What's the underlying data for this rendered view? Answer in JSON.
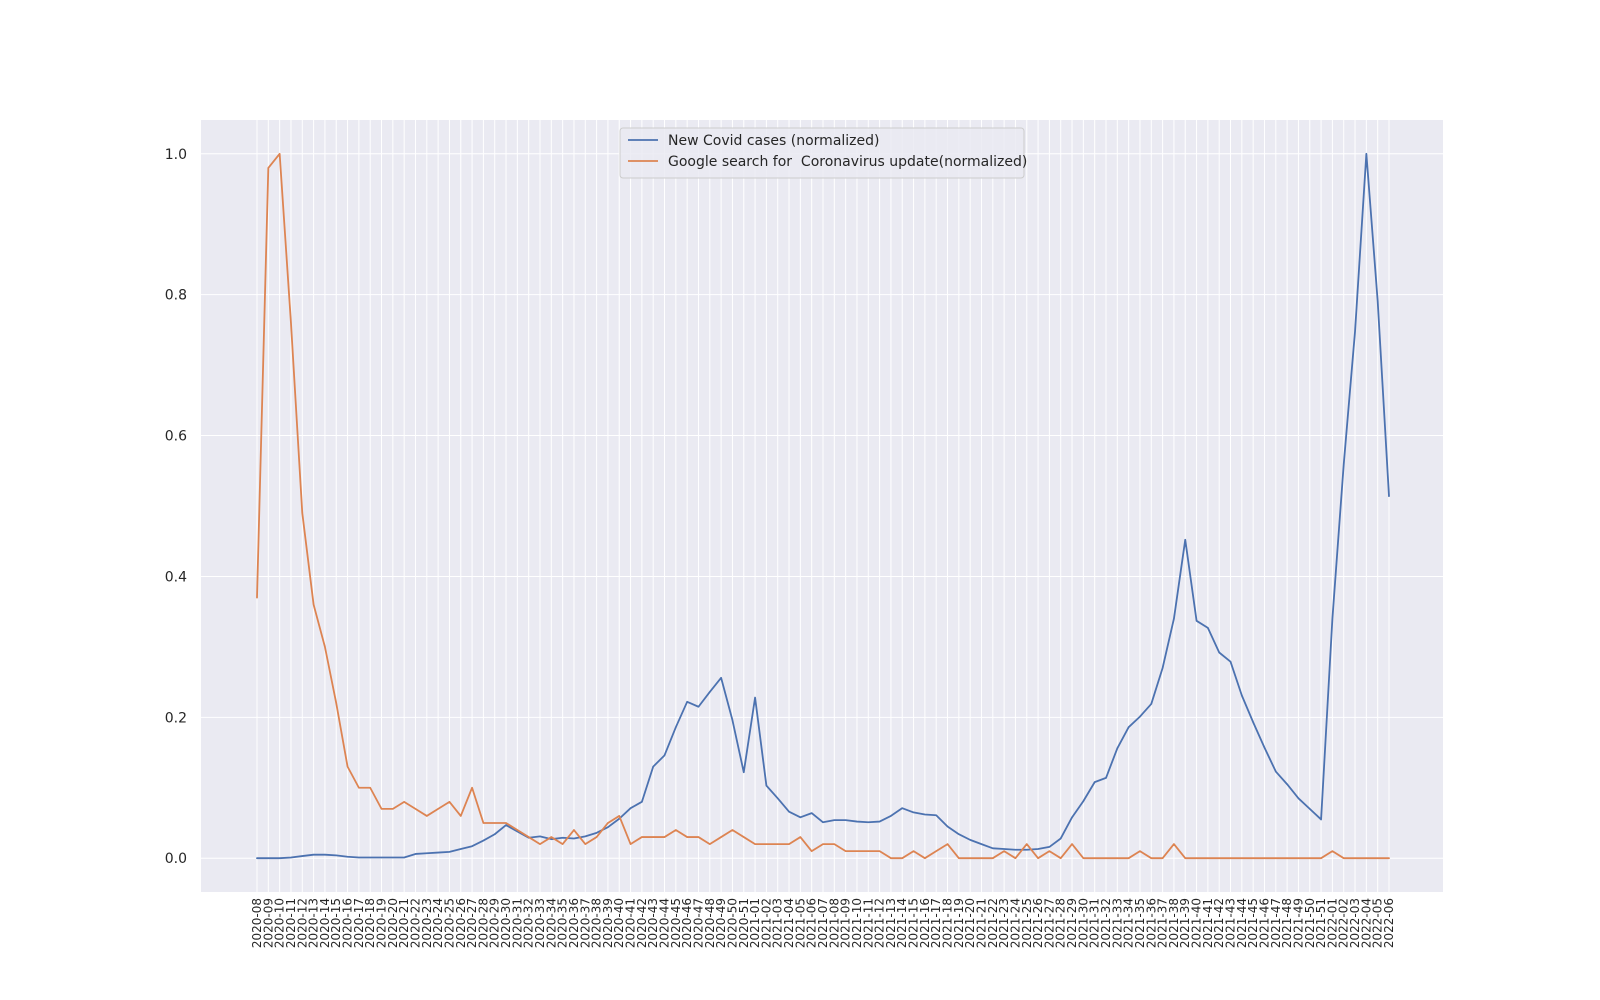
{
  "chart_data": {
    "type": "line",
    "title": "",
    "xlabel": "",
    "ylabel": "",
    "ylim": [
      -0.048,
      1.048
    ],
    "yticks": [
      0.0,
      0.2,
      0.4,
      0.6,
      0.8,
      1.0
    ],
    "grid": true,
    "legend_position": "top-center",
    "colors": {
      "plot_bg": "#eaeaf2",
      "grid": "#ffffff",
      "covid": "#4c72b0",
      "search": "#dd8452"
    },
    "x": [
      "2020-08",
      "2020-09",
      "2020-10",
      "2020-11",
      "2020-12",
      "2020-13",
      "2020-14",
      "2020-15",
      "2020-16",
      "2020-17",
      "2020-18",
      "2020-19",
      "2020-20",
      "2020-21",
      "2020-22",
      "2020-23",
      "2020-24",
      "2020-25",
      "2020-26",
      "2020-27",
      "2020-28",
      "2020-29",
      "2020-30",
      "2020-31",
      "2020-32",
      "2020-33",
      "2020-34",
      "2020-35",
      "2020-36",
      "2020-37",
      "2020-38",
      "2020-39",
      "2020-40",
      "2020-41",
      "2020-42",
      "2020-43",
      "2020-44",
      "2020-45",
      "2020-46",
      "2020-47",
      "2020-48",
      "2020-49",
      "2020-50",
      "2020-51",
      "2021-01",
      "2021-02",
      "2021-03",
      "2021-04",
      "2021-05",
      "2021-06",
      "2021-07",
      "2021-08",
      "2021-09",
      "2021-10",
      "2021-11",
      "2021-12",
      "2021-13",
      "2021-14",
      "2021-15",
      "2021-16",
      "2021-17",
      "2021-18",
      "2021-19",
      "2021-20",
      "2021-21",
      "2021-22",
      "2021-23",
      "2021-24",
      "2021-25",
      "2021-26",
      "2021-27",
      "2021-28",
      "2021-29",
      "2021-30",
      "2021-31",
      "2021-32",
      "2021-33",
      "2021-34",
      "2021-35",
      "2021-36",
      "2021-37",
      "2021-38",
      "2021-39",
      "2021-40",
      "2021-41",
      "2021-42",
      "2021-43",
      "2021-44",
      "2021-45",
      "2021-46",
      "2021-47",
      "2021-48",
      "2021-49",
      "2021-50",
      "2021-51",
      "2022-01",
      "2022-02",
      "2022-03",
      "2022-04",
      "2022-05",
      "2022-06"
    ],
    "x_tick_labels": [
      "2020-08",
      "2020-09",
      "2020-10",
      "2020-11",
      "2020-12",
      "2020-13",
      "2020-14",
      "2020-15",
      "2020-16",
      "2020-17",
      "2020-18",
      "2020-19",
      "2020-20",
      "2020-21",
      "2020-22",
      "2020-23",
      "2020-24",
      "2020-25",
      "2020-26",
      "2020-27",
      "2020-28",
      "2020-29",
      "2020-30",
      "2020-31",
      "2020-32",
      "2020-33",
      "2020-34",
      "2020-35",
      "2020-36",
      "2020-37",
      "2020-38",
      "2020-39",
      "2020-40",
      "2020-41",
      "2020-42",
      "2020-43",
      "2020-44",
      "2020-45",
      "2020-46",
      "2020-47",
      "2020-48",
      "2020-49",
      "2020-50",
      "2020-51",
      "2021-01",
      "2021-02",
      "2021-03",
      "2021-04",
      "2021-05",
      "2021-06",
      "2021-07",
      "2021-08",
      "2021-09",
      "2021-10",
      "2021-11",
      "2021-12",
      "2021-13",
      "2021-14",
      "2021-15",
      "2021-16",
      "2021-17",
      "2021-18",
      "2021-19",
      "2021-20",
      "2021-21",
      "2021-22",
      "2021-23",
      "2021-24",
      "2021-25",
      "2021-26",
      "2021-27",
      "2021-28",
      "2021-29",
      "2021-30",
      "2021-31",
      "2021-32",
      "2021-33",
      "2021-34",
      "2021-35",
      "2021-36",
      "2021-37",
      "2021-38",
      "2021-39",
      "2021-40",
      "2021-41",
      "2021-42",
      "2021-43",
      "2021-44",
      "2021-45",
      "2021-46",
      "2021-47",
      "2021-48",
      "2021-49",
      "2021-50",
      "2021-51",
      "2022-01",
      "2022-02",
      "2022-03",
      "2022-04",
      "2022-05",
      "2022-06"
    ],
    "series": [
      {
        "name": "New Covid cases (normalized)",
        "values": [
          0.0,
          0.0,
          0.0,
          0.001,
          0.003,
          0.005,
          0.005,
          0.004,
          0.002,
          0.001,
          0.001,
          0.001,
          0.001,
          0.001,
          0.006,
          0.007,
          0.008,
          0.009,
          0.013,
          0.017,
          0.025,
          0.034,
          0.047,
          0.038,
          0.029,
          0.031,
          0.027,
          0.029,
          0.028,
          0.031,
          0.036,
          0.044,
          0.056,
          0.071,
          0.08,
          0.13,
          0.146,
          0.186,
          0.222,
          0.215,
          0.236,
          0.256,
          0.196,
          0.122,
          0.228,
          0.103,
          0.085,
          0.066,
          0.058,
          0.064,
          0.051,
          0.054,
          0.054,
          0.052,
          0.051,
          0.052,
          0.06,
          0.071,
          0.065,
          0.062,
          0.061,
          0.045,
          0.034,
          0.026,
          0.02,
          0.014,
          0.013,
          0.012,
          0.012,
          0.013,
          0.016,
          0.028,
          0.058,
          0.081,
          0.108,
          0.114,
          0.156,
          0.186,
          0.201,
          0.219,
          0.27,
          0.34,
          0.452,
          0.337,
          0.327,
          0.292,
          0.279,
          0.231,
          0.193,
          0.157,
          0.123,
          0.105,
          0.085,
          0.07,
          0.055,
          0.34,
          0.559,
          0.748,
          1.0,
          0.791,
          0.514
        ]
      },
      {
        "name": "Google search for  Coronavirus update(normalized)",
        "values": [
          0.37,
          0.98,
          1.0,
          0.76,
          0.49,
          0.36,
          0.3,
          0.22,
          0.13,
          0.1,
          0.1,
          0.07,
          0.07,
          0.08,
          0.07,
          0.06,
          0.07,
          0.08,
          0.06,
          0.1,
          0.05,
          0.05,
          0.05,
          0.04,
          0.03,
          0.02,
          0.03,
          0.02,
          0.04,
          0.02,
          0.03,
          0.05,
          0.06,
          0.02,
          0.03,
          0.03,
          0.03,
          0.04,
          0.03,
          0.03,
          0.02,
          0.03,
          0.04,
          0.03,
          0.02,
          0.02,
          0.02,
          0.02,
          0.03,
          0.01,
          0.02,
          0.02,
          0.01,
          0.01,
          0.01,
          0.01,
          0.0,
          0.0,
          0.01,
          0.0,
          0.01,
          0.02,
          0.0,
          0.0,
          0.0,
          0.0,
          0.01,
          0.0,
          0.02,
          0.0,
          0.01,
          0.0,
          0.02,
          0.0,
          0.0,
          0.0,
          0.0,
          0.0,
          0.01,
          0.0,
          0.0,
          0.02,
          0.0,
          0.0,
          0.0,
          0.0,
          0.0,
          0.0,
          0.0,
          0.0,
          0.0,
          0.0,
          0.0,
          0.0,
          0.0,
          0.01,
          0.0,
          0.0,
          0.0,
          0.0,
          0.0
        ]
      }
    ]
  }
}
